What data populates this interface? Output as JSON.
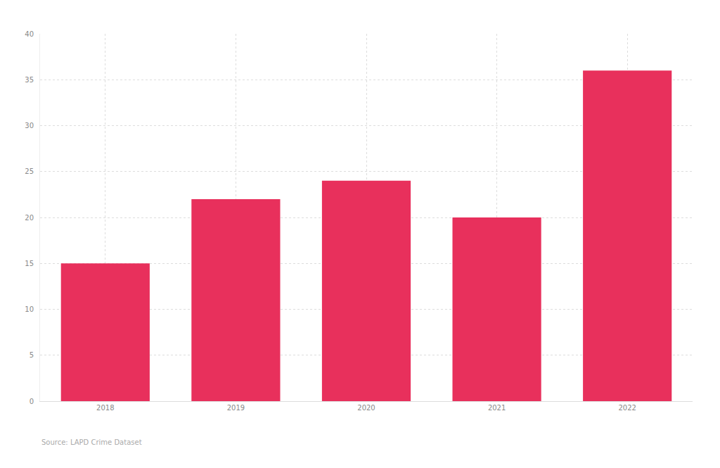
{
  "chart_data": {
    "type": "bar",
    "categories": [
      "2018",
      "2019",
      "2020",
      "2021",
      "2022"
    ],
    "values": [
      15,
      22,
      24,
      20,
      36
    ],
    "color": "#e8305c",
    "ylim": [
      0,
      40
    ],
    "yticks": [
      0,
      5,
      10,
      15,
      20,
      25,
      30,
      35,
      40
    ],
    "grid": true,
    "annotations": [
      "Source: LAPD Crime Dataset"
    ]
  }
}
